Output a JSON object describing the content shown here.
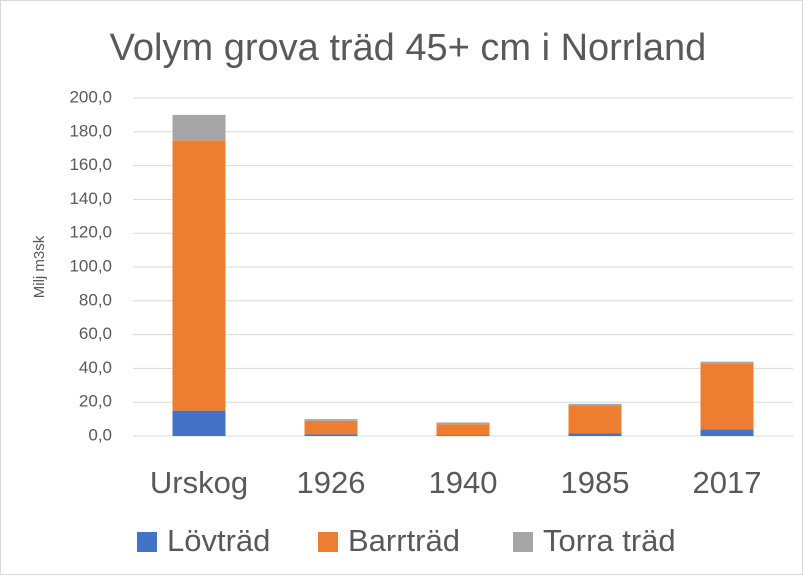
{
  "chart_data": {
    "type": "stacked_bar",
    "title": "Volym grova träd 45+ cm i Norrland",
    "y_label": "Milj m3sk",
    "categories": [
      "Urskog",
      "1926",
      "1940",
      "1985",
      "2017"
    ],
    "series": [
      {
        "name": "Lövträd",
        "color": "#4472c4",
        "values": [
          15,
          1,
          0.5,
          1.5,
          4
        ]
      },
      {
        "name": "Barrträd",
        "color": "#ed7d31",
        "values": [
          160,
          8,
          6.5,
          16.5,
          39
        ]
      },
      {
        "name": "Torra träd",
        "color": "#a5a5a5",
        "values": [
          15,
          1,
          1,
          1,
          1
        ]
      }
    ],
    "ylim": [
      0,
      200
    ],
    "yticks": [
      {
        "value": 0,
        "label": "0,0"
      },
      {
        "value": 20,
        "label": "20,0"
      },
      {
        "value": 40,
        "label": "40,0"
      },
      {
        "value": 60,
        "label": "60,0"
      },
      {
        "value": 80,
        "label": "80,0"
      },
      {
        "value": 100,
        "label": "100,0"
      },
      {
        "value": 120,
        "label": "120,0"
      },
      {
        "value": 140,
        "label": "140,0"
      },
      {
        "value": 160,
        "label": "160,0"
      },
      {
        "value": 180,
        "label": "180,0"
      },
      {
        "value": 200,
        "label": "200,0"
      }
    ],
    "grid": true,
    "legend": "bottom"
  }
}
